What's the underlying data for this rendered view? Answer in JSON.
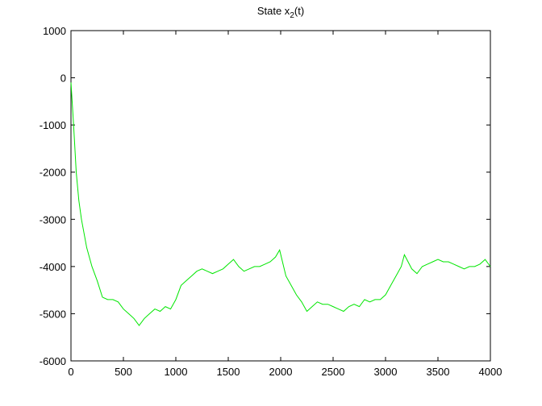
{
  "chart_data": {
    "type": "line",
    "title": [
      "State x",
      "2",
      "(t)"
    ],
    "x": [
      0,
      25,
      50,
      75,
      100,
      150,
      200,
      250,
      300,
      350,
      400,
      450,
      500,
      550,
      600,
      650,
      700,
      750,
      800,
      850,
      900,
      950,
      1000,
      1050,
      1100,
      1150,
      1200,
      1250,
      1300,
      1350,
      1400,
      1450,
      1500,
      1550,
      1600,
      1650,
      1700,
      1750,
      1800,
      1850,
      1900,
      1950,
      1990,
      2050,
      2100,
      2150,
      2200,
      2250,
      2300,
      2350,
      2400,
      2450,
      2500,
      2550,
      2600,
      2650,
      2700,
      2750,
      2800,
      2850,
      2900,
      2950,
      3000,
      3050,
      3100,
      3150,
      3180,
      3250,
      3300,
      3350,
      3400,
      3450,
      3500,
      3550,
      3600,
      3650,
      3700,
      3750,
      3800,
      3850,
      3900,
      3950,
      4000
    ],
    "series": [
      {
        "color": "#00e600",
        "values": [
          -100,
          -1000,
          -2000,
          -2600,
          -3000,
          -3600,
          -4000,
          -4300,
          -4650,
          -4700,
          -4700,
          -4750,
          -4900,
          -5000,
          -5100,
          -5250,
          -5100,
          -5000,
          -4900,
          -4950,
          -4850,
          -4900,
          -4700,
          -4400,
          -4300,
          -4200,
          -4100,
          -4050,
          -4100,
          -4150,
          -4100,
          -4050,
          -3950,
          -3850,
          -4000,
          -4100,
          -4050,
          -4000,
          -4000,
          -3950,
          -3900,
          -3800,
          -3650,
          -4200,
          -4400,
          -4600,
          -4750,
          -4950,
          -4850,
          -4750,
          -4800,
          -4800,
          -4850,
          -4900,
          -4950,
          -4850,
          -4800,
          -4850,
          -4700,
          -4750,
          -4700,
          -4700,
          -4600,
          -4400,
          -4200,
          -4000,
          -3750,
          -4050,
          -4150,
          -4000,
          -3950,
          -3900,
          -3850,
          -3900,
          -3900,
          -3950,
          -4000,
          -4050,
          -4000,
          -4000,
          -3950,
          -3850,
          -4000
        ]
      }
    ],
    "xlim": [
      0,
      4000
    ],
    "xticks": [
      0,
      500,
      1000,
      1500,
      2000,
      2500,
      3000,
      3500,
      4000
    ],
    "ylim": [
      -6000,
      1000
    ],
    "yticks": [
      -6000,
      -5000,
      -4000,
      -3000,
      -2000,
      -1000,
      0,
      1000
    ],
    "grid": false
  }
}
